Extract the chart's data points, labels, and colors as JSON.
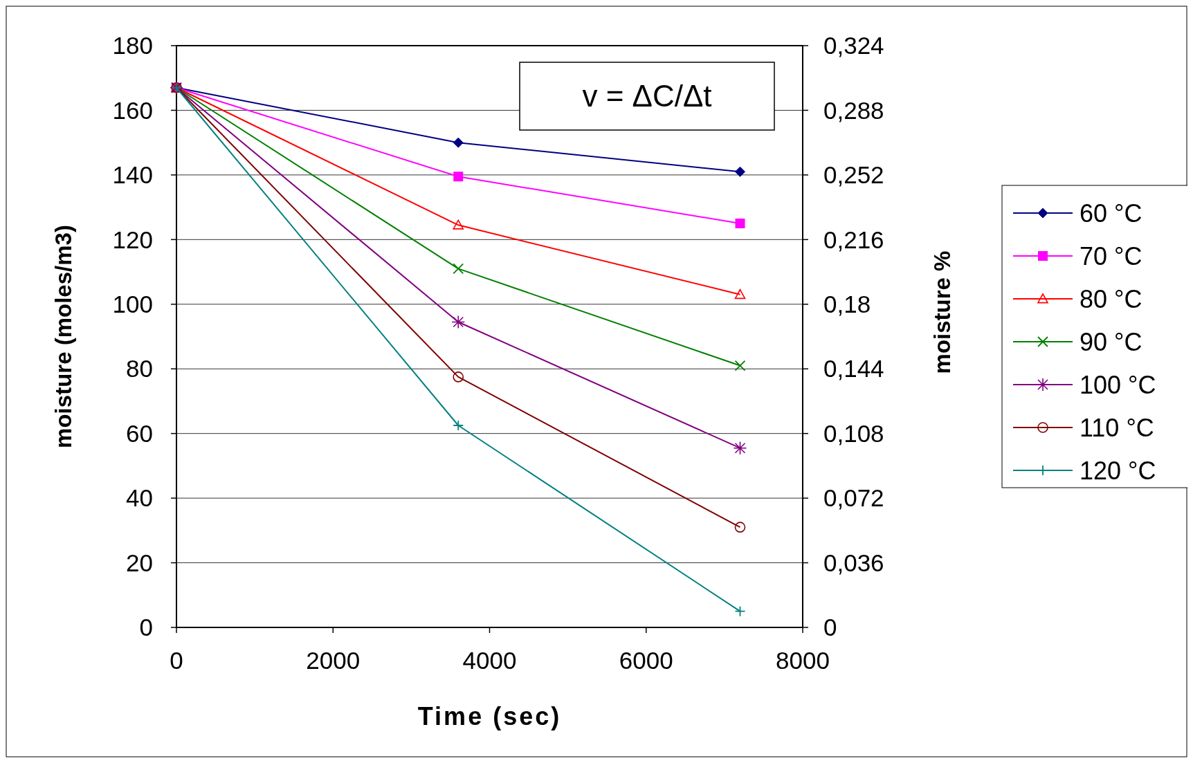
{
  "chart_data": {
    "type": "line",
    "xlabel": "Time (sec)",
    "ylabel": "moisture (moles/m3)",
    "y2label": "moisture %",
    "annotations": [
      "v = ΔC/Δt"
    ],
    "x": [
      0,
      3600,
      7200
    ],
    "xlim": [
      0,
      8000
    ],
    "xticks": [
      0,
      2000,
      4000,
      6000,
      8000
    ],
    "ylim": [
      0,
      180
    ],
    "yticks": [
      0,
      20,
      40,
      60,
      80,
      100,
      120,
      140,
      160,
      180
    ],
    "y2lim": [
      0,
      0.324
    ],
    "y2ticks": [
      0,
      {
        "value": 0.036,
        "label": "0,036"
      },
      {
        "value": 0.072,
        "label": "0,072"
      },
      {
        "value": 0.108,
        "label": "0,108"
      },
      {
        "value": 0.144,
        "label": "0,144"
      },
      {
        "value": 0.18,
        "label": "0,18"
      },
      {
        "value": 0.216,
        "label": "0,216"
      },
      {
        "value": 0.252,
        "label": "0,252"
      },
      {
        "value": 0.288,
        "label": "0,288"
      },
      {
        "value": 0.324,
        "label": "0,324"
      }
    ],
    "grid": "y",
    "legend": "right",
    "series": [
      {
        "name": "60 °C",
        "color": "#000080",
        "marker": "diamond",
        "values": [
          167,
          150,
          141
        ]
      },
      {
        "name": "70 °C",
        "color": "#ff00ff",
        "marker": "square",
        "values": [
          167,
          139.5,
          125
        ]
      },
      {
        "name": "80 °C",
        "color": "#ff0000",
        "marker": "triangle",
        "values": [
          167,
          124.5,
          103
        ]
      },
      {
        "name": "90 °C",
        "color": "#008000",
        "marker": "x",
        "values": [
          167,
          111,
          81
        ]
      },
      {
        "name": "100 °C",
        "color": "#800080",
        "marker": "cross",
        "values": [
          167,
          94.5,
          55.5
        ]
      },
      {
        "name": "110 °C",
        "color": "#800000",
        "marker": "circle",
        "values": [
          167,
          77.5,
          31
        ]
      },
      {
        "name": "120 °C",
        "color": "#008080",
        "marker": "plus",
        "values": [
          167,
          62.5,
          5
        ]
      }
    ]
  }
}
